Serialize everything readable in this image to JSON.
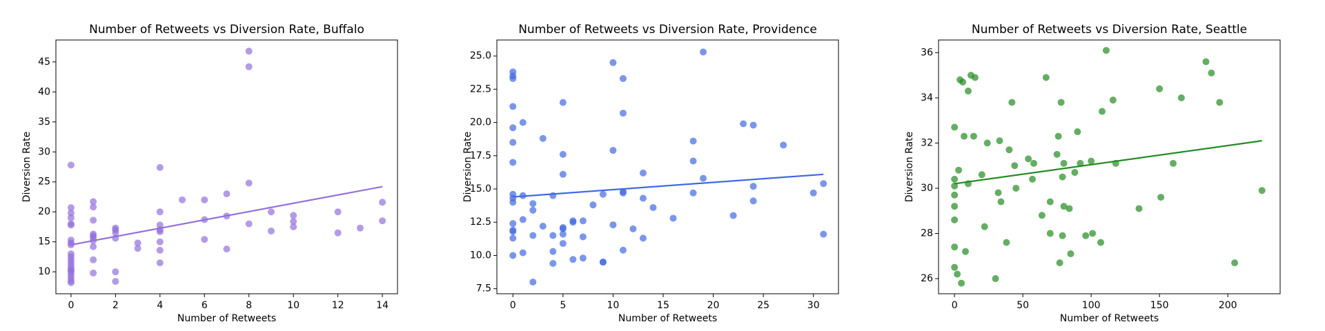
{
  "chart_data": [
    {
      "type": "scatter",
      "title": "Number of Retweets vs Diversion Rate, Buffalo",
      "x_label": "Number of Retweets",
      "y_label": "Diversion Rate",
      "color": "#9370db",
      "x": [
        0,
        0,
        0,
        0,
        0,
        0,
        0,
        0,
        0,
        0,
        0,
        0,
        0,
        0,
        0,
        0,
        0,
        0,
        0,
        0,
        0,
        1,
        1,
        1,
        1,
        1,
        1,
        1,
        1,
        1,
        1,
        2,
        2,
        2,
        2,
        2,
        2,
        3,
        3,
        4,
        4,
        4,
        4,
        4,
        4,
        4,
        4,
        5,
        6,
        6,
        6,
        7,
        7,
        7,
        8,
        8,
        8,
        8,
        9,
        9,
        10,
        10,
        10,
        12,
        12,
        13,
        14,
        14
      ],
      "values": [
        27.8,
        20.7,
        19.8,
        19,
        18,
        17.8,
        15.3,
        14.8,
        14.5,
        13,
        12.5,
        12,
        11.5,
        11,
        10.5,
        10.2,
        10,
        9.5,
        9,
        8.5,
        8.2,
        21.7,
        20.8,
        18.6,
        16.3,
        16,
        15.7,
        15.2,
        14.2,
        12,
        9.8,
        17.3,
        17,
        16.5,
        15.6,
        10,
        8.4,
        14.8,
        13.9,
        27.4,
        20,
        17.8,
        17,
        16.7,
        15,
        13.6,
        11.5,
        22,
        22,
        18.7,
        15.4,
        23,
        19.3,
        13.8,
        46.8,
        44.2,
        24.8,
        18,
        20,
        16.8,
        19.4,
        18.4,
        17.5,
        20,
        16.5,
        17.3,
        21.6,
        18.5
      ],
      "trend": {
        "x": [
          0,
          14
        ],
        "values": [
          14.5,
          24.2
        ]
      },
      "xlim": [
        -0.68,
        14.68
      ],
      "ylim": [
        6.34,
        48.66
      ],
      "xticks": [
        0,
        2,
        4,
        6,
        8,
        10,
        12,
        14
      ],
      "yticks": [
        10,
        15,
        20,
        25,
        30,
        35,
        40,
        45
      ]
    },
    {
      "type": "scatter",
      "title": "Number of Retweets vs Diversion Rate, Providence",
      "x_label": "Number of Retweets",
      "y_label": "Diversion Rate",
      "color": "#4169e1",
      "x": [
        0,
        0,
        0,
        0,
        0,
        0,
        0,
        0,
        0,
        0,
        0,
        0,
        0,
        0,
        0,
        1,
        1,
        1,
        1,
        2,
        2,
        2,
        2,
        3,
        3,
        4,
        4,
        4,
        4,
        5,
        5,
        5,
        5,
        5,
        5,
        5,
        6,
        6,
        6,
        7,
        7,
        7,
        8,
        9,
        9,
        9,
        10,
        10,
        10,
        11,
        11,
        11,
        11,
        11,
        12,
        13,
        13,
        13,
        14,
        16,
        18,
        18,
        18,
        19,
        19,
        22,
        23,
        24,
        24,
        24,
        27,
        30,
        31,
        31
      ],
      "values": [
        23.8,
        23.5,
        23.3,
        21.2,
        19.6,
        18.5,
        17,
        14.6,
        14.3,
        14,
        12.4,
        11.9,
        11.8,
        11.3,
        10,
        20,
        14.5,
        12.7,
        10.2,
        13.9,
        13.4,
        11.5,
        8,
        18.8,
        12.2,
        14.5,
        11.5,
        10.3,
        9.4,
        21.5,
        17.6,
        16.1,
        12.1,
        12,
        11.6,
        10.9,
        12.6,
        12.5,
        9.7,
        12.6,
        11.4,
        9.8,
        13.8,
        14.6,
        9.5,
        9.5,
        24.5,
        17.9,
        12.3,
        23.3,
        20.7,
        14.8,
        14.7,
        10.4,
        12,
        16.2,
        14.3,
        11.3,
        13.6,
        12.8,
        18.6,
        17.1,
        14.7,
        25.3,
        15.8,
        13,
        19.9,
        19.8,
        15.2,
        14.1,
        18.3,
        14.7,
        15.4,
        11.6
      ],
      "trend": {
        "x": [
          0,
          31
        ],
        "values": [
          14.4,
          16.1
        ]
      },
      "xlim": [
        -1.6,
        32.5
      ],
      "ylim": [
        7.12,
        26.2
      ],
      "xticks": [
        0,
        5,
        10,
        15,
        20,
        25,
        30
      ],
      "yticks": [
        7.5,
        {
          "value": 10,
          "label": "10.0"
        },
        12.5,
        {
          "value": 15,
          "label": "15.0"
        },
        17.5,
        {
          "value": 20,
          "label": "20.0"
        },
        22.5,
        {
          "value": 25,
          "label": "25.0"
        }
      ]
    },
    {
      "type": "scatter",
      "title": "Number of Retweets vs Diversion Rate, Seattle",
      "x_label": "Number of Retweets",
      "y_label": "Diversion Rate",
      "color": "#228b22",
      "x": [
        0,
        0,
        0,
        0,
        0,
        0,
        0,
        0,
        2,
        3,
        4,
        5,
        6,
        7,
        8,
        10,
        10,
        12,
        14,
        15,
        20,
        22,
        24,
        30,
        32,
        33,
        34,
        38,
        40,
        42,
        44,
        45,
        54,
        57,
        58,
        64,
        67,
        70,
        70,
        75,
        76,
        77,
        78,
        79,
        79,
        80,
        80,
        84,
        85,
        88,
        90,
        92,
        96,
        100,
        101,
        107,
        108,
        111,
        116,
        118,
        135,
        150,
        151,
        160,
        166,
        184,
        188,
        194,
        205,
        225
      ],
      "values": [
        32.7,
        30.4,
        30.1,
        29.7,
        29.2,
        28.6,
        27.4,
        26.5,
        26.2,
        30.8,
        34.8,
        25.8,
        34.7,
        32.3,
        27.2,
        34.3,
        30.2,
        35,
        32.3,
        34.9,
        30.6,
        28.3,
        32,
        26,
        29.8,
        32.1,
        29.4,
        27.6,
        31.7,
        33.8,
        31,
        30,
        31.3,
        30.4,
        31.1,
        28.8,
        34.9,
        29.4,
        28,
        31.5,
        32.3,
        26.7,
        33.8,
        30.5,
        27.9,
        29.2,
        31.1,
        29.1,
        27.1,
        30.7,
        32.5,
        31.1,
        27.9,
        31.2,
        28,
        27.6,
        33.4,
        36.1,
        33.9,
        31.1,
        29.1,
        34.4,
        29.6,
        31.1,
        34,
        35.6,
        35.1,
        33.8,
        26.7,
        29.9
      ],
      "trend": {
        "x": [
          0,
          225
        ],
        "values": [
          30.2,
          32.1
        ]
      },
      "xlim": [
        -11.7,
        238.3
      ],
      "ylim": [
        25.33,
        36.56
      ],
      "xticks": [
        0,
        50,
        100,
        150,
        200
      ],
      "yticks": [
        26,
        28,
        30,
        32,
        34,
        36
      ]
    }
  ]
}
